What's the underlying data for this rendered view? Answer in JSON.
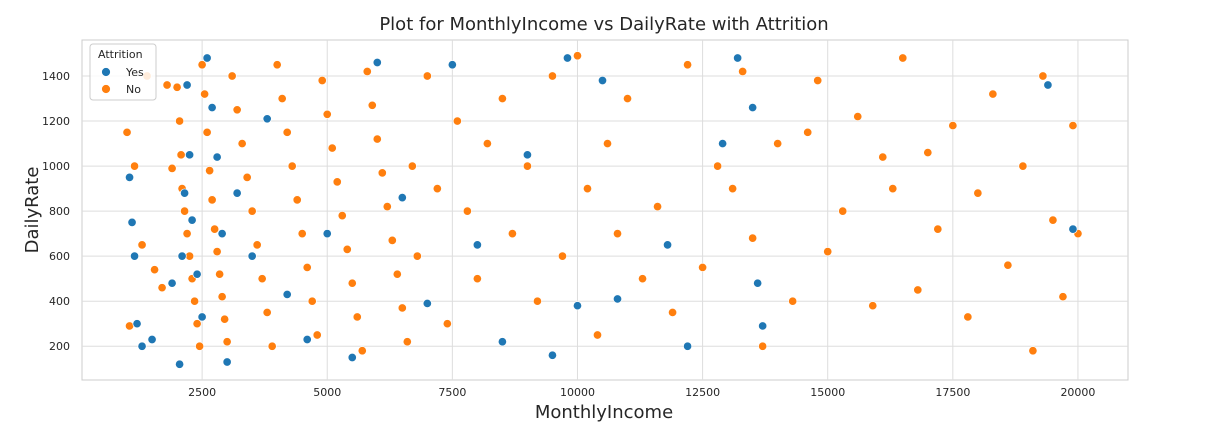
{
  "colors": {
    "yes": "#1f77b4",
    "no": "#ff7f0e",
    "grid": "#dddddd",
    "frame": "#cccccc"
  },
  "chart_data": {
    "type": "scatter",
    "title": "Plot for MonthlyIncome vs DailyRate with Attrition",
    "xlabel": "MonthlyIncome",
    "ylabel": "DailyRate",
    "xlim": [
      100,
      21000
    ],
    "ylim": [
      50,
      1560
    ],
    "xticks": [
      2500,
      5000,
      7500,
      10000,
      12500,
      15000,
      17500,
      20000
    ],
    "yticks": [
      200,
      400,
      600,
      800,
      1000,
      1200,
      1400
    ],
    "grid": true,
    "legend": {
      "title": "Attrition",
      "placement": "upper-left",
      "entries": [
        {
          "label": "Yes",
          "color": "#1f77b4"
        },
        {
          "label": "No",
          "color": "#ff7f0e"
        }
      ]
    },
    "series": [
      {
        "name": "No",
        "color": "#ff7f0e",
        "points": [
          [
            1000,
            1150
          ],
          [
            1050,
            290
          ],
          [
            1150,
            1000
          ],
          [
            1300,
            650
          ],
          [
            1400,
            1400
          ],
          [
            1550,
            540
          ],
          [
            1700,
            460
          ],
          [
            1800,
            1360
          ],
          [
            1900,
            990
          ],
          [
            2000,
            1350
          ],
          [
            2050,
            1200
          ],
          [
            2080,
            1050
          ],
          [
            2100,
            900
          ],
          [
            2150,
            800
          ],
          [
            2200,
            700
          ],
          [
            2250,
            600
          ],
          [
            2300,
            500
          ],
          [
            2350,
            400
          ],
          [
            2400,
            300
          ],
          [
            2450,
            200
          ],
          [
            2500,
            1450
          ],
          [
            2550,
            1320
          ],
          [
            2600,
            1150
          ],
          [
            2650,
            980
          ],
          [
            2700,
            850
          ],
          [
            2750,
            720
          ],
          [
            2800,
            620
          ],
          [
            2850,
            520
          ],
          [
            2900,
            420
          ],
          [
            2950,
            320
          ],
          [
            3000,
            220
          ],
          [
            3100,
            1400
          ],
          [
            3200,
            1250
          ],
          [
            3300,
            1100
          ],
          [
            3400,
            950
          ],
          [
            3500,
            800
          ],
          [
            3600,
            650
          ],
          [
            3700,
            500
          ],
          [
            3800,
            350
          ],
          [
            3900,
            200
          ],
          [
            4000,
            1450
          ],
          [
            4100,
            1300
          ],
          [
            4200,
            1150
          ],
          [
            4300,
            1000
          ],
          [
            4400,
            850
          ],
          [
            4500,
            700
          ],
          [
            4600,
            550
          ],
          [
            4700,
            400
          ],
          [
            4800,
            250
          ],
          [
            4900,
            1380
          ],
          [
            5000,
            1230
          ],
          [
            5100,
            1080
          ],
          [
            5200,
            930
          ],
          [
            5300,
            780
          ],
          [
            5400,
            630
          ],
          [
            5500,
            480
          ],
          [
            5600,
            330
          ],
          [
            5700,
            180
          ],
          [
            5800,
            1420
          ],
          [
            5900,
            1270
          ],
          [
            6000,
            1120
          ],
          [
            6100,
            970
          ],
          [
            6200,
            820
          ],
          [
            6300,
            670
          ],
          [
            6400,
            520
          ],
          [
            6500,
            370
          ],
          [
            6600,
            220
          ],
          [
            6700,
            1000
          ],
          [
            6800,
            600
          ],
          [
            7000,
            1400
          ],
          [
            7200,
            900
          ],
          [
            7400,
            300
          ],
          [
            7600,
            1200
          ],
          [
            7800,
            800
          ],
          [
            8000,
            500
          ],
          [
            8200,
            1100
          ],
          [
            8500,
            1300
          ],
          [
            8700,
            700
          ],
          [
            9000,
            1000
          ],
          [
            9200,
            400
          ],
          [
            9500,
            1400
          ],
          [
            9700,
            600
          ],
          [
            10000,
            1490
          ],
          [
            10200,
            900
          ],
          [
            10400,
            250
          ],
          [
            10600,
            1100
          ],
          [
            10800,
            700
          ],
          [
            11000,
            1300
          ],
          [
            11300,
            500
          ],
          [
            11600,
            820
          ],
          [
            11900,
            350
          ],
          [
            12200,
            1450
          ],
          [
            12500,
            550
          ],
          [
            12800,
            1000
          ],
          [
            13100,
            900
          ],
          [
            13300,
            1420
          ],
          [
            13500,
            680
          ],
          [
            13700,
            200
          ],
          [
            14000,
            1100
          ],
          [
            14300,
            400
          ],
          [
            14600,
            1150
          ],
          [
            14800,
            1380
          ],
          [
            15000,
            620
          ],
          [
            15300,
            800
          ],
          [
            15600,
            1220
          ],
          [
            15900,
            380
          ],
          [
            16100,
            1040
          ],
          [
            16300,
            900
          ],
          [
            16500,
            1480
          ],
          [
            16800,
            450
          ],
          [
            17000,
            1060
          ],
          [
            17200,
            720
          ],
          [
            17500,
            1180
          ],
          [
            17800,
            330
          ],
          [
            18000,
            880
          ],
          [
            18300,
            1320
          ],
          [
            18600,
            560
          ],
          [
            18900,
            1000
          ],
          [
            19100,
            180
          ],
          [
            19300,
            1400
          ],
          [
            19500,
            760
          ],
          [
            19700,
            420
          ],
          [
            19900,
            1180
          ],
          [
            20000,
            700
          ]
        ]
      },
      {
        "name": "Yes",
        "color": "#1f77b4",
        "points": [
          [
            1050,
            950
          ],
          [
            1100,
            750
          ],
          [
            1150,
            600
          ],
          [
            1200,
            300
          ],
          [
            1300,
            200
          ],
          [
            1500,
            230
          ],
          [
            1900,
            480
          ],
          [
            2050,
            120
          ],
          [
            2100,
            600
          ],
          [
            2150,
            880
          ],
          [
            2200,
            1360
          ],
          [
            2250,
            1050
          ],
          [
            2300,
            760
          ],
          [
            2400,
            520
          ],
          [
            2500,
            330
          ],
          [
            2600,
            1480
          ],
          [
            2700,
            1260
          ],
          [
            2800,
            1040
          ],
          [
            2900,
            700
          ],
          [
            3000,
            130
          ],
          [
            3200,
            880
          ],
          [
            3500,
            600
          ],
          [
            3800,
            1210
          ],
          [
            4200,
            430
          ],
          [
            4600,
            230
          ],
          [
            5000,
            700
          ],
          [
            5500,
            150
          ],
          [
            6000,
            1460
          ],
          [
            6500,
            860
          ],
          [
            7000,
            390
          ],
          [
            7500,
            1450
          ],
          [
            8000,
            650
          ],
          [
            8500,
            220
          ],
          [
            9000,
            1050
          ],
          [
            9500,
            160
          ],
          [
            9800,
            1480
          ],
          [
            10000,
            380
          ],
          [
            10500,
            1380
          ],
          [
            10800,
            410
          ],
          [
            11800,
            650
          ],
          [
            12200,
            200
          ],
          [
            12900,
            1100
          ],
          [
            13200,
            1480
          ],
          [
            13500,
            1260
          ],
          [
            13600,
            480
          ],
          [
            13700,
            290
          ],
          [
            19400,
            1360
          ],
          [
            19900,
            720
          ]
        ]
      }
    ]
  }
}
